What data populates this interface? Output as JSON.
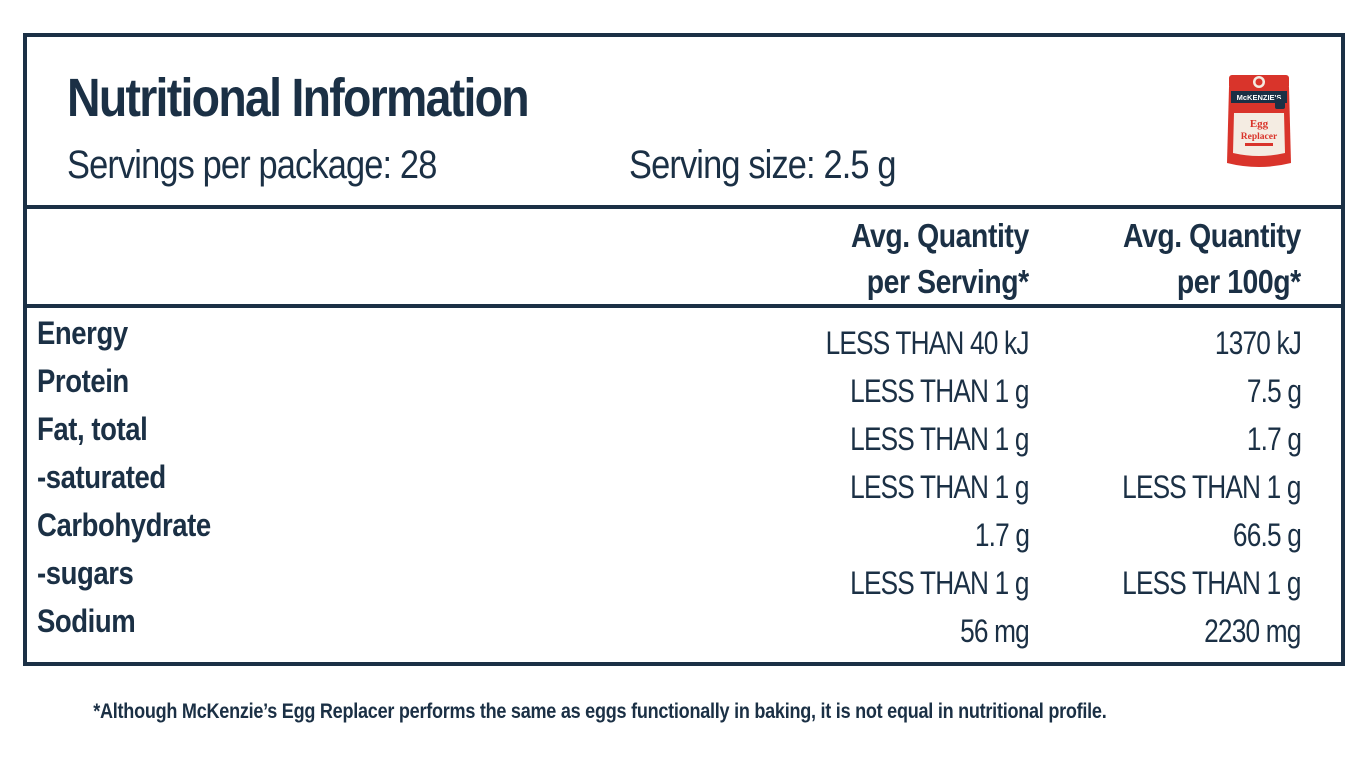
{
  "header": {
    "title": "Nutritional Information",
    "servings_per_package": "Servings per package: 28",
    "serving_size": "Serving size: 2.5 g"
  },
  "product_image": {
    "brand": "McKENZIE'S",
    "name_line1": "Egg",
    "name_line2": "Replacer",
    "colors": {
      "body": "#d9342b",
      "label": "#f4ece2",
      "accent": "#1b3045"
    }
  },
  "columns": {
    "per_serving": [
      "Avg. Quantity",
      "per Serving*"
    ],
    "per_100g": [
      "Avg. Quantity",
      "per 100g*"
    ]
  },
  "nutrients": [
    {
      "name": "Energy",
      "per_serving": "LESS THAN 40 kJ",
      "per_100g": "1370 kJ"
    },
    {
      "name": "Protein",
      "per_serving": "LESS THAN 1 g",
      "per_100g": "7.5 g"
    },
    {
      "name": "Fat, total",
      "per_serving": "LESS THAN 1 g",
      "per_100g": "1.7 g"
    },
    {
      "name": "-saturated",
      "per_serving": "LESS THAN 1 g",
      "per_100g": "LESS THAN 1 g"
    },
    {
      "name": "Carbohydrate",
      "per_serving": "1.7 g",
      "per_100g": "66.5 g"
    },
    {
      "name": "-sugars",
      "per_serving": "LESS THAN 1 g",
      "per_100g": "LESS THAN 1 g"
    },
    {
      "name": "Sodium",
      "per_serving": "56 mg",
      "per_100g": "2230 mg"
    }
  ],
  "footnote": "*Although McKenzie’s Egg Replacer performs the same as eggs functionally in baking, it is not equal in nutritional profile.",
  "colors": {
    "ink": "#1b3045",
    "background": "#ffffff"
  }
}
